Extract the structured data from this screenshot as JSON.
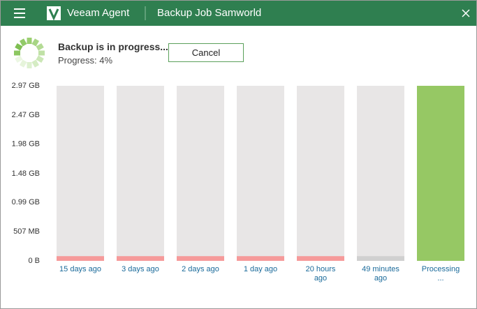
{
  "header": {
    "app": "Veeam Agent",
    "job": "Backup Job Samworld"
  },
  "status": {
    "title": "Backup is in progress...",
    "progress": "Progress: 4%",
    "button": "Cancel"
  },
  "chart_data": {
    "type": "bar",
    "categories": [
      "15 days ago",
      "3 days ago",
      "2 days ago",
      "1 day ago",
      "20 hours ago",
      "49 minutes ago",
      "Processing ..."
    ],
    "values": [
      0.08,
      0.08,
      0.08,
      0.08,
      0.08,
      0.08,
      2.97
    ],
    "colors": [
      "#f69a9a",
      "#f69a9a",
      "#f69a9a",
      "#f69a9a",
      "#f69a9a",
      "#d0d0d0",
      "#96c864"
    ],
    "ylim": [
      0,
      2.97
    ],
    "yticks": [
      {
        "value": 0,
        "label": "0 B"
      },
      {
        "value": 0.495,
        "label": "507 MB"
      },
      {
        "value": 0.99,
        "label": "0.99 GB"
      },
      {
        "value": 1.48,
        "label": "1.48 GB"
      },
      {
        "value": 1.98,
        "label": "1.98 GB"
      },
      {
        "value": 2.47,
        "label": "2.47 GB"
      },
      {
        "value": 2.97,
        "label": "2.97 GB"
      }
    ]
  }
}
